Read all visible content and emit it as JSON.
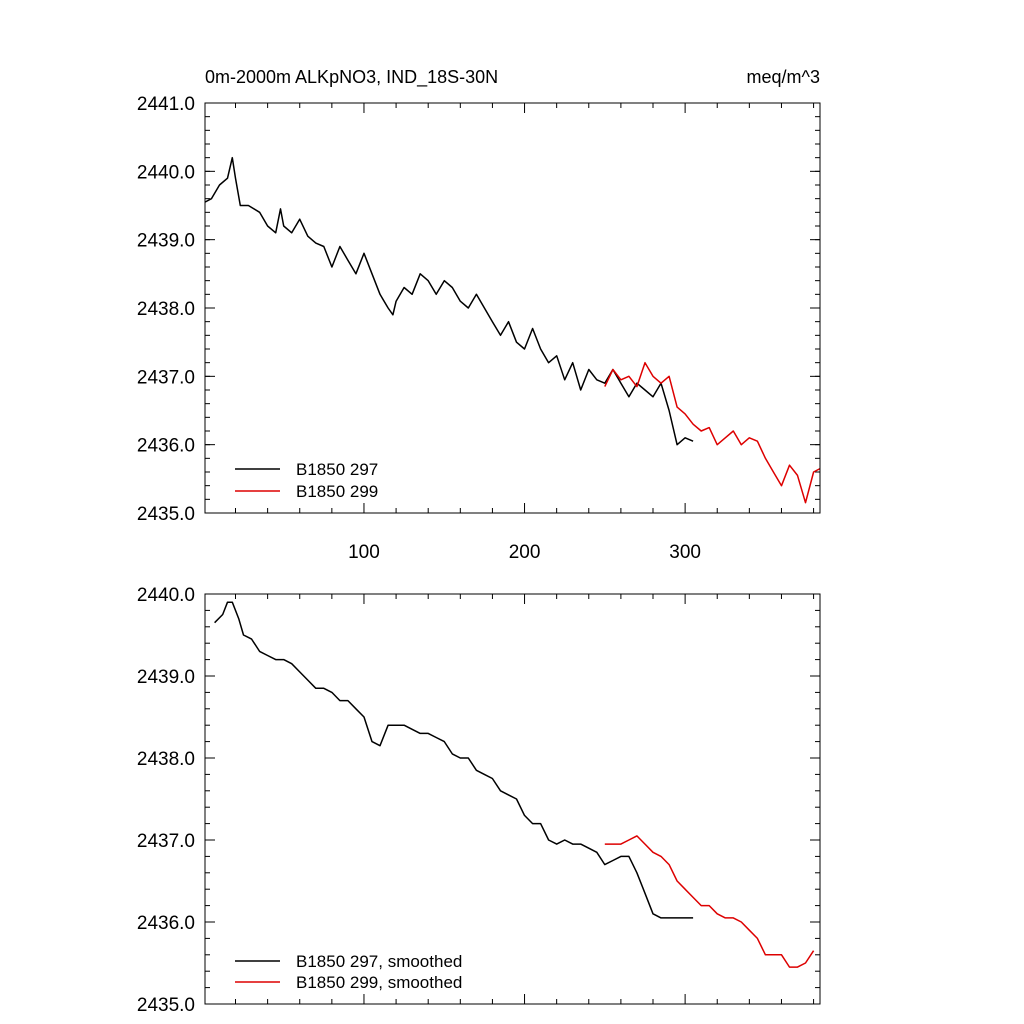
{
  "chart_data": [
    {
      "type": "line",
      "title": "0m-2000m ALKpNO3, IND_18S-30N",
      "units": "meq/m^3",
      "xlim": [
        1,
        384
      ],
      "ylim": [
        2435.0,
        2441.0
      ],
      "x_ticks": [
        100,
        200,
        300
      ],
      "x_tick_labels": [
        "100",
        "200",
        "300"
      ],
      "y_ticks": [
        2435.0,
        2436.0,
        2437.0,
        2438.0,
        2439.0,
        2440.0,
        2441.0
      ],
      "y_tick_labels": [
        "2435.0",
        "2436.0",
        "2437.0",
        "2438.0",
        "2439.0",
        "2440.0",
        "2441.0"
      ],
      "legend_position": "bottom-left",
      "series": [
        {
          "name": "B1850 297",
          "color": "#000000",
          "x": [
            1,
            5,
            10,
            15,
            18,
            20,
            23,
            28,
            35,
            40,
            45,
            48,
            50,
            55,
            60,
            65,
            70,
            75,
            80,
            85,
            90,
            95,
            100,
            105,
            110,
            115,
            118,
            120,
            125,
            130,
            135,
            140,
            145,
            150,
            155,
            160,
            165,
            170,
            175,
            180,
            185,
            190,
            195,
            200,
            205,
            210,
            215,
            220,
            225,
            230,
            235,
            240,
            245,
            250,
            255,
            260,
            265,
            270,
            275,
            280,
            285,
            290,
            295,
            300,
            305
          ],
          "values": [
            2439.55,
            2439.6,
            2439.8,
            2439.9,
            2440.2,
            2439.9,
            2439.5,
            2439.5,
            2439.4,
            2439.2,
            2439.1,
            2439.45,
            2439.2,
            2439.1,
            2439.3,
            2439.05,
            2438.95,
            2438.9,
            2438.6,
            2438.9,
            2438.7,
            2438.5,
            2438.8,
            2438.5,
            2438.2,
            2438.0,
            2437.9,
            2438.1,
            2438.3,
            2438.2,
            2438.5,
            2438.4,
            2438.2,
            2438.4,
            2438.3,
            2438.1,
            2438.0,
            2438.2,
            2438.0,
            2437.8,
            2437.6,
            2437.8,
            2437.5,
            2437.4,
            2437.7,
            2437.4,
            2437.2,
            2437.3,
            2436.95,
            2437.2,
            2436.8,
            2437.1,
            2436.95,
            2436.9,
            2437.1,
            2436.9,
            2436.7,
            2436.9,
            2436.8,
            2436.7,
            2436.9,
            2436.5,
            2436.0,
            2436.1,
            2436.05
          ]
        },
        {
          "name": "B1850 299",
          "color": "#dd0000",
          "x": [
            250,
            255,
            260,
            265,
            270,
            275,
            280,
            285,
            290,
            295,
            300,
            305,
            310,
            315,
            320,
            325,
            330,
            335,
            340,
            345,
            350,
            355,
            360,
            365,
            370,
            375,
            380,
            384
          ],
          "values": [
            2436.85,
            2437.1,
            2436.95,
            2437.0,
            2436.85,
            2437.2,
            2437.0,
            2436.9,
            2437.0,
            2436.55,
            2436.45,
            2436.3,
            2436.2,
            2436.25,
            2436.0,
            2436.1,
            2436.2,
            2436.0,
            2436.1,
            2436.05,
            2435.8,
            2435.6,
            2435.4,
            2435.7,
            2435.55,
            2435.15,
            2435.6,
            2435.65
          ]
        }
      ]
    },
    {
      "type": "line",
      "title": "",
      "xlim": [
        1,
        384
      ],
      "ylim": [
        2435.0,
        2440.0
      ],
      "x_ticks": [
        100,
        200,
        300
      ],
      "x_tick_labels": [],
      "y_ticks": [
        2435.0,
        2436.0,
        2437.0,
        2438.0,
        2439.0,
        2440.0
      ],
      "y_tick_labels": [
        "2435.0",
        "2436.0",
        "2437.0",
        "2438.0",
        "2439.0",
        "2440.0"
      ],
      "legend_position": "bottom-left",
      "series": [
        {
          "name": "B1850 297, smoothed",
          "color": "#000000",
          "x": [
            7,
            12,
            15,
            18,
            22,
            25,
            30,
            35,
            40,
            45,
            50,
            55,
            60,
            65,
            70,
            75,
            80,
            85,
            90,
            95,
            100,
            105,
            110,
            115,
            120,
            125,
            130,
            135,
            140,
            145,
            150,
            155,
            160,
            165,
            170,
            175,
            180,
            185,
            190,
            195,
            200,
            205,
            210,
            215,
            220,
            225,
            230,
            235,
            240,
            245,
            250,
            255,
            260,
            265,
            270,
            275,
            280,
            285,
            290,
            295,
            300,
            305
          ],
          "values": [
            2439.65,
            2439.75,
            2439.9,
            2439.9,
            2439.7,
            2439.5,
            2439.45,
            2439.3,
            2439.25,
            2439.2,
            2439.2,
            2439.15,
            2439.05,
            2438.95,
            2438.85,
            2438.85,
            2438.8,
            2438.7,
            2438.7,
            2438.6,
            2438.5,
            2438.2,
            2438.15,
            2438.4,
            2438.4,
            2438.4,
            2438.35,
            2438.3,
            2438.3,
            2438.25,
            2438.2,
            2438.05,
            2438.0,
            2438.0,
            2437.85,
            2437.8,
            2437.75,
            2437.6,
            2437.55,
            2437.5,
            2437.3,
            2437.2,
            2437.2,
            2437.0,
            2436.95,
            2437.0,
            2436.95,
            2436.95,
            2436.9,
            2436.85,
            2436.7,
            2436.75,
            2436.8,
            2436.8,
            2436.6,
            2436.35,
            2436.1,
            2436.05,
            2436.05,
            2436.05,
            2436.05,
            2436.05
          ]
        },
        {
          "name": "B1850 299, smoothed",
          "color": "#dd0000",
          "x": [
            250,
            255,
            260,
            265,
            270,
            275,
            280,
            285,
            290,
            295,
            300,
            305,
            310,
            315,
            320,
            325,
            330,
            335,
            340,
            345,
            350,
            355,
            360,
            365,
            370,
            375,
            380
          ],
          "values": [
            2436.95,
            2436.95,
            2436.95,
            2437.0,
            2437.05,
            2436.95,
            2436.85,
            2436.8,
            2436.7,
            2436.5,
            2436.4,
            2436.3,
            2436.2,
            2436.2,
            2436.1,
            2436.05,
            2436.05,
            2436.0,
            2435.9,
            2435.8,
            2435.6,
            2435.6,
            2435.6,
            2435.45,
            2435.45,
            2435.5,
            2435.65
          ]
        }
      ]
    }
  ]
}
